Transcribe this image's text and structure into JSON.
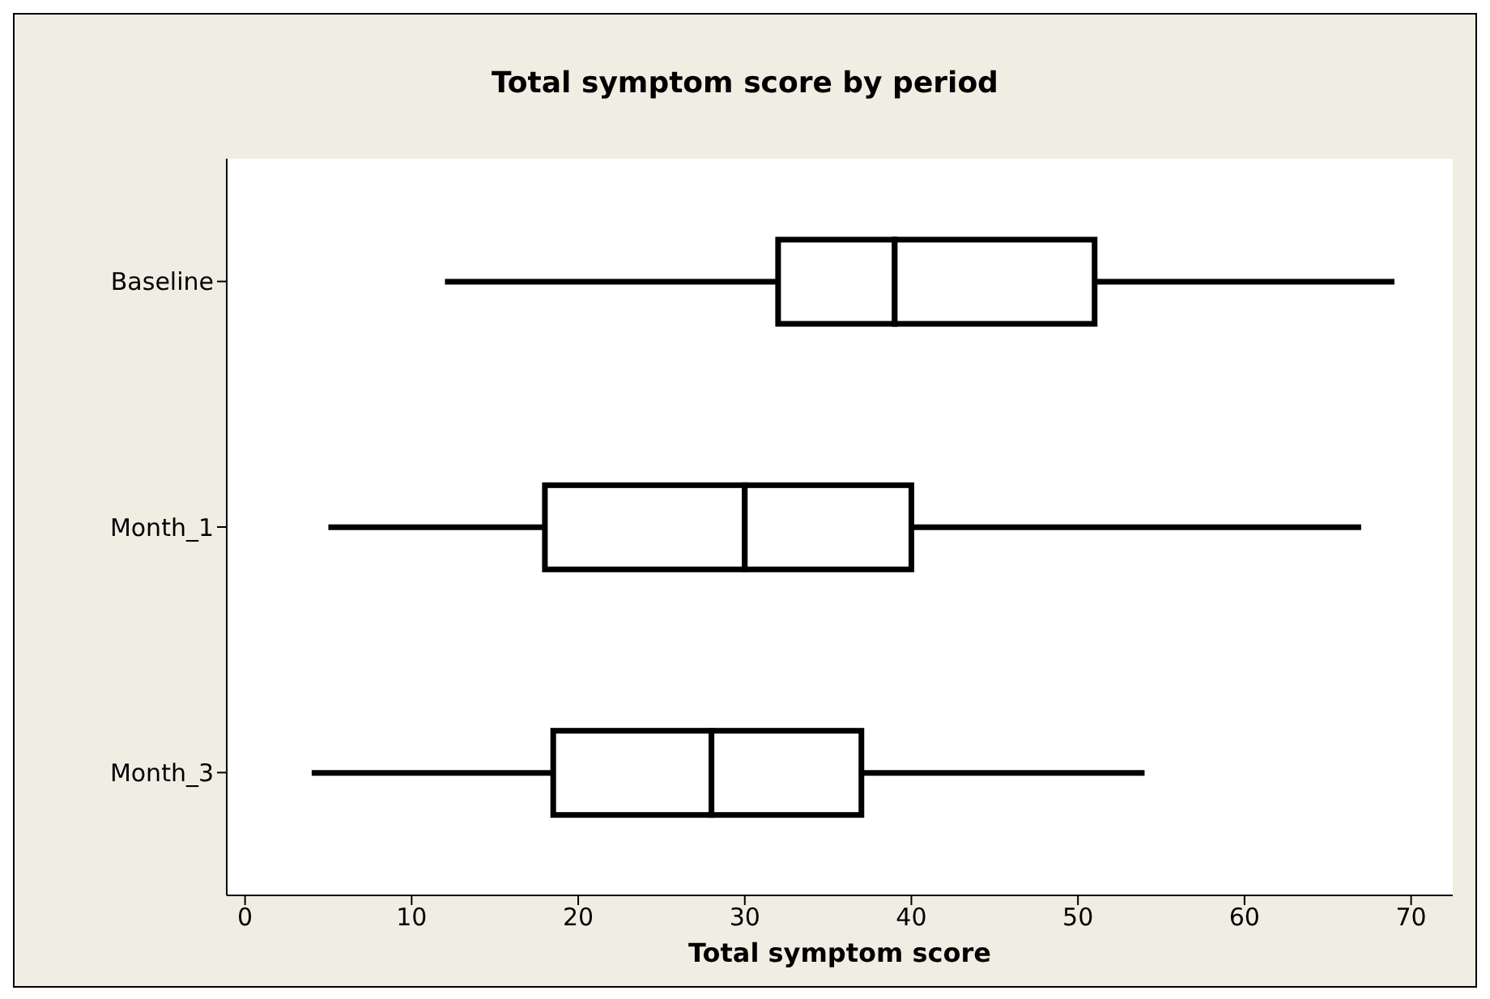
{
  "chart_data": {
    "type": "box",
    "title": "Total symptom score by period",
    "xlabel": "Total symptom score",
    "orientation": "horizontal",
    "color": "#000000",
    "categories": [
      "Baseline",
      "Month_1",
      "Month_3"
    ],
    "boxes": [
      {
        "low": 12,
        "q1": 32,
        "median": 39,
        "q3": 51,
        "high": 69
      },
      {
        "low": 5,
        "q1": 18,
        "median": 30,
        "q3": 40,
        "high": 67
      },
      {
        "low": 4,
        "q1": 18.5,
        "median": 28,
        "q3": 37,
        "high": 54
      }
    ],
    "xlim": [
      -1.1,
      72.5
    ],
    "xticks": [
      0,
      10,
      20,
      30,
      40,
      50,
      60,
      70
    ]
  }
}
